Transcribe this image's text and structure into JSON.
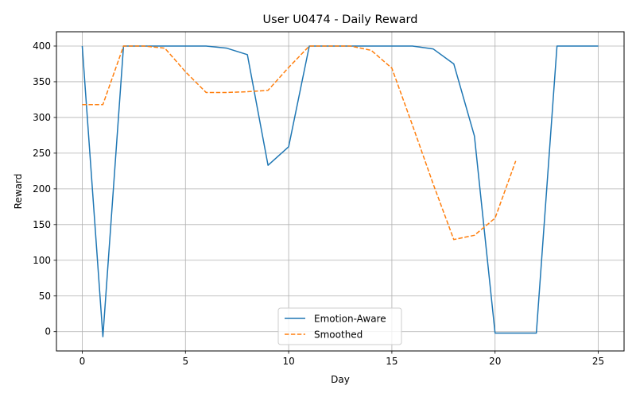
{
  "chart_data": {
    "type": "line",
    "title": "User U0474 - Daily Reward",
    "xlabel": "Day",
    "ylabel": "Reward",
    "xlim": [
      -1.25,
      26.25
    ],
    "ylim": [
      -27,
      420
    ],
    "x_ticks": [
      0,
      5,
      10,
      15,
      20,
      25
    ],
    "y_ticks": [
      0,
      50,
      100,
      150,
      200,
      250,
      300,
      350,
      400
    ],
    "grid": true,
    "legend_position": "lower center",
    "series": [
      {
        "name": "Emotion-Aware",
        "color": "#1f77b4",
        "style": "solid",
        "x": [
          0,
          1,
          2,
          3,
          4,
          5,
          6,
          7,
          8,
          9,
          10,
          11,
          12,
          13,
          14,
          15,
          16,
          17,
          18,
          19,
          20,
          21,
          22,
          23,
          24,
          25
        ],
        "values": [
          400,
          -7,
          400,
          400,
          400,
          400,
          400,
          397,
          388,
          233,
          259,
          400,
          400,
          400,
          400,
          400,
          400,
          396,
          375,
          274,
          -2,
          -2,
          -2,
          400,
          400,
          400
        ]
      },
      {
        "name": "Smoothed",
        "color": "#ff7f0e",
        "style": "dashed",
        "x": [
          0,
          1,
          2,
          3,
          4,
          5,
          6,
          7,
          8,
          9,
          10,
          11,
          12,
          13,
          14,
          15,
          16,
          17,
          18,
          19,
          20,
          21
        ],
        "values": [
          318,
          318,
          400,
          400,
          397,
          364,
          335,
          335,
          336,
          338,
          370,
          400,
          400,
          400,
          394,
          369,
          289,
          207,
          129,
          135,
          159,
          239
        ]
      }
    ]
  }
}
